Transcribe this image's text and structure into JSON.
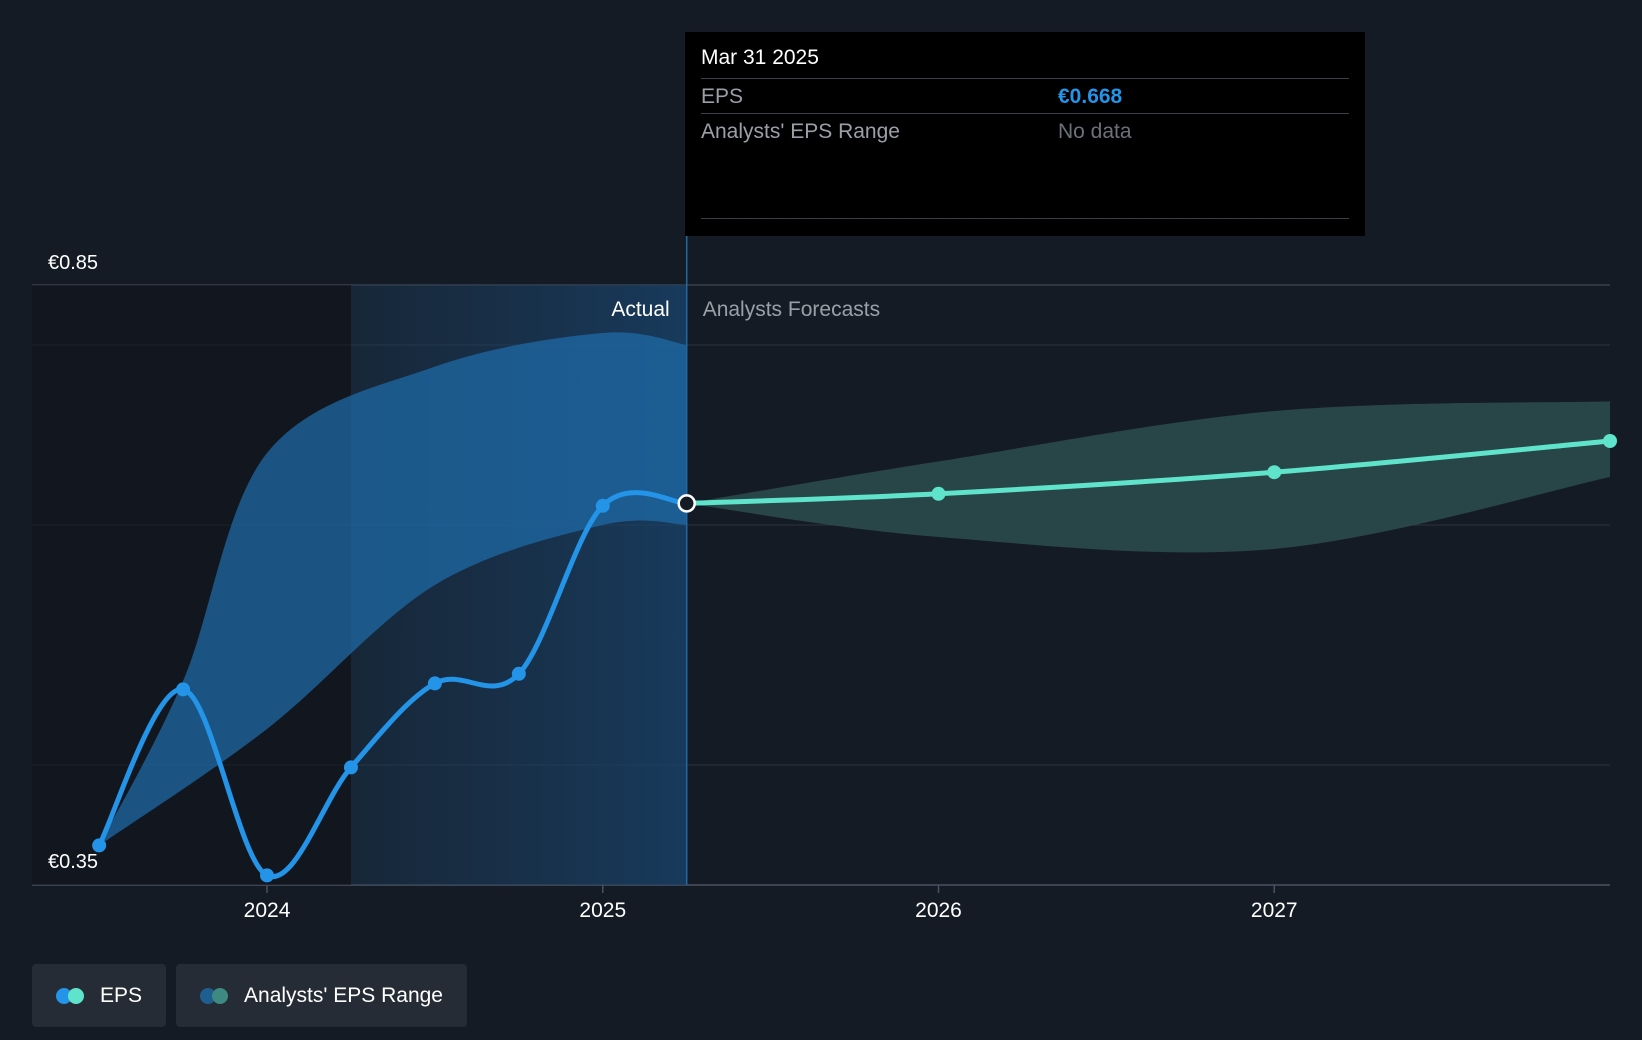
{
  "chart_data": {
    "type": "line",
    "y_axis": {
      "top_label": "€0.85",
      "bottom_label": "€0.35",
      "ylim": [
        0.35,
        0.85
      ]
    },
    "x_ticks": [
      {
        "label": "2024",
        "t": 2024.0
      },
      {
        "label": "2025",
        "t": 2025.0
      },
      {
        "label": "2026",
        "t": 2026.0
      },
      {
        "label": "2027",
        "t": 2027.0
      }
    ],
    "xlim": [
      2023.3,
      2028.0
    ],
    "actual_label": "Actual",
    "forecast_label": "Analysts Forecasts",
    "divider_t": 2025.25,
    "past_shade_start_t": 2024.25,
    "eps_actual": [
      {
        "t": 2023.5,
        "v": 0.383
      },
      {
        "t": 2023.75,
        "v": 0.513
      },
      {
        "t": 2024.0,
        "v": 0.358
      },
      {
        "t": 2024.25,
        "v": 0.448
      },
      {
        "t": 2024.5,
        "v": 0.518
      },
      {
        "t": 2024.75,
        "v": 0.526
      },
      {
        "t": 2025.0,
        "v": 0.666
      },
      {
        "t": 2025.25,
        "v": 0.668
      }
    ],
    "eps_forecast": [
      {
        "t": 2025.25,
        "v": 0.668
      },
      {
        "t": 2026.0,
        "v": 0.676
      },
      {
        "t": 2027.0,
        "v": 0.694
      },
      {
        "t": 2028.0,
        "v": 0.72
      }
    ],
    "past_range_upper": [
      {
        "t": 2023.5,
        "v": 0.383
      },
      {
        "t": 2023.75,
        "v": 0.52
      },
      {
        "t": 2024.0,
        "v": 0.71
      },
      {
        "t": 2024.5,
        "v": 0.782
      },
      {
        "t": 2025.0,
        "v": 0.81
      },
      {
        "t": 2025.25,
        "v": 0.8
      }
    ],
    "past_range_lower": [
      {
        "t": 2023.5,
        "v": 0.383
      },
      {
        "t": 2024.0,
        "v": 0.48
      },
      {
        "t": 2024.5,
        "v": 0.6
      },
      {
        "t": 2025.0,
        "v": 0.65
      },
      {
        "t": 2025.25,
        "v": 0.65
      }
    ],
    "forecast_range_upper": [
      {
        "t": 2025.25,
        "v": 0.668
      },
      {
        "t": 2026.0,
        "v": 0.703
      },
      {
        "t": 2027.0,
        "v": 0.745
      },
      {
        "t": 2028.0,
        "v": 0.753
      }
    ],
    "forecast_range_lower": [
      {
        "t": 2025.25,
        "v": 0.668
      },
      {
        "t": 2026.0,
        "v": 0.64
      },
      {
        "t": 2027.0,
        "v": 0.63
      },
      {
        "t": 2028.0,
        "v": 0.69
      }
    ],
    "gridline_values": [
      0.35,
      0.45,
      0.65,
      0.8,
      0.85
    ]
  },
  "tooltip": {
    "date": "Mar 31 2025",
    "eps_label": "EPS",
    "eps_value": "€0.668",
    "range_label": "Analysts' EPS Range",
    "range_value": "No data"
  },
  "legend": {
    "eps_label": "EPS",
    "range_label": "Analysts' EPS Range"
  },
  "colors": {
    "eps_actual": "#2394e7",
    "eps_forecast": "#5fe3cb",
    "past_range_fill": "#1f6aa6",
    "forecast_range_fill": "#2c4c4e",
    "legend_range_dot_a": "#1f5f8f",
    "legend_range_dot_b": "#3e8a80"
  }
}
